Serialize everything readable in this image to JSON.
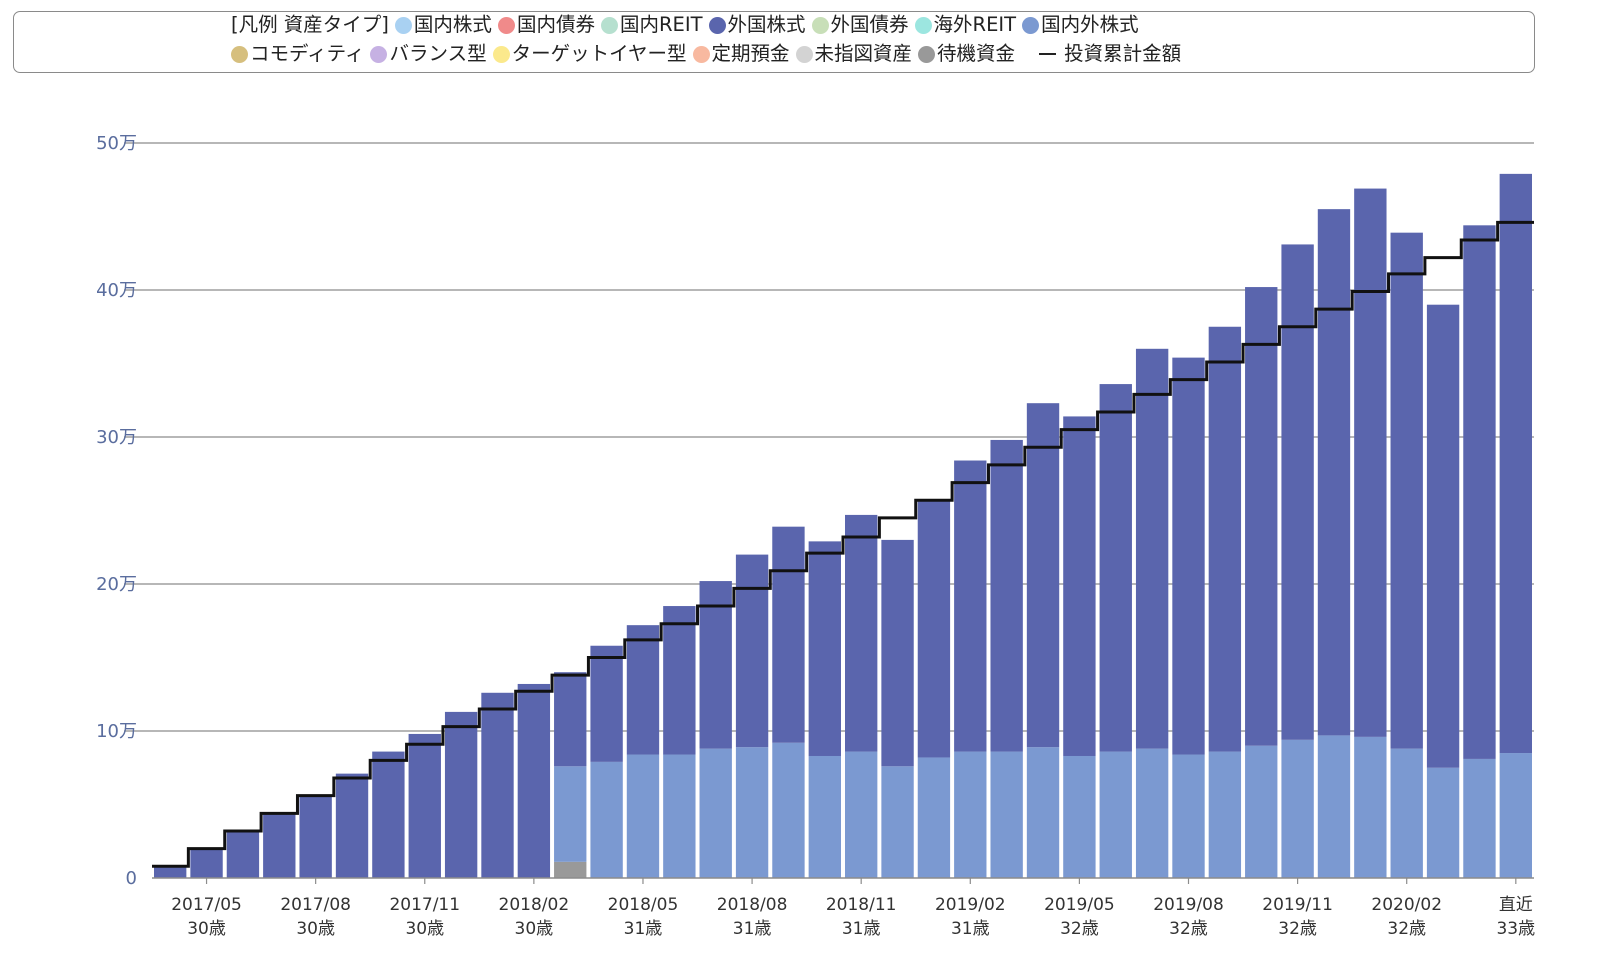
{
  "legend": {
    "title": "[凡例 資産タイプ]",
    "items": [
      {
        "label": "国内株式",
        "color": "#a9d1f2"
      },
      {
        "label": "国内債券",
        "color": "#f08a8a"
      },
      {
        "label": "国内REIT",
        "color": "#b6e0cf"
      },
      {
        "label": "外国株式",
        "color": "#5a65ad"
      },
      {
        "label": "外国債券",
        "color": "#c8dfb8"
      },
      {
        "label": "海外REIT",
        "color": "#9ce6e0"
      },
      {
        "label": "国内外株式",
        "color": "#7b99d1"
      },
      {
        "label": "コモディティ",
        "color": "#d6bf7e"
      },
      {
        "label": "バランス型",
        "color": "#c6b1e3"
      },
      {
        "label": "ターゲットイヤー型",
        "color": "#fbe98c"
      },
      {
        "label": "定期預金",
        "color": "#f8b9a0"
      },
      {
        "label": "未指図資産",
        "color": "#d3d3d3"
      },
      {
        "label": "待機資金",
        "color": "#999999"
      }
    ],
    "line_label": "投資累計金額"
  },
  "chart_data": {
    "type": "bar",
    "stacked": true,
    "ylim": [
      0,
      500000
    ],
    "yticks": [
      {
        "value": 0,
        "label": "0"
      },
      {
        "value": 100000,
        "label": "10万"
      },
      {
        "value": 200000,
        "label": "20万"
      },
      {
        "value": 300000,
        "label": "30万"
      },
      {
        "value": 400000,
        "label": "40万"
      },
      {
        "value": 500000,
        "label": "50万"
      }
    ],
    "x_tick_labels": [
      {
        "index": 1,
        "date": "2017/05",
        "age": "30歳"
      },
      {
        "index": 4,
        "date": "2017/08",
        "age": "30歳"
      },
      {
        "index": 7,
        "date": "2017/11",
        "age": "30歳"
      },
      {
        "index": 10,
        "date": "2018/02",
        "age": "30歳"
      },
      {
        "index": 13,
        "date": "2018/05",
        "age": "31歳"
      },
      {
        "index": 16,
        "date": "2018/08",
        "age": "31歳"
      },
      {
        "index": 19,
        "date": "2018/11",
        "age": "31歳"
      },
      {
        "index": 22,
        "date": "2019/02",
        "age": "31歳"
      },
      {
        "index": 25,
        "date": "2019/05",
        "age": "32歳"
      },
      {
        "index": 28,
        "date": "2019/08",
        "age": "32歳"
      },
      {
        "index": 31,
        "date": "2019/11",
        "age": "32歳"
      },
      {
        "index": 34,
        "date": "2020/02",
        "age": "32歳"
      },
      {
        "index": 37,
        "date": "直近",
        "age": "33歳"
      }
    ],
    "series": [
      {
        "name": "待機資金",
        "color": "#999999",
        "values": [
          0,
          0,
          0,
          0,
          0,
          0,
          0,
          0,
          0,
          0,
          0,
          11000,
          0,
          0,
          0,
          0,
          0,
          0,
          0,
          0,
          0,
          0,
          0,
          0,
          0,
          0,
          0,
          0,
          0,
          0,
          0,
          0,
          0,
          0,
          0,
          0,
          0,
          0
        ]
      },
      {
        "name": "国内外株式",
        "color": "#7b99d1",
        "values": [
          0,
          0,
          0,
          0,
          0,
          0,
          0,
          0,
          0,
          0,
          0,
          65000,
          79000,
          84000,
          84000,
          88000,
          89000,
          92000,
          83000,
          86000,
          76000,
          82000,
          86000,
          86000,
          89000,
          83000,
          86000,
          88000,
          84000,
          86000,
          90000,
          94000,
          97000,
          96000,
          88000,
          75000,
          81000,
          85000
        ]
      },
      {
        "name": "外国株式",
        "color": "#5a65ad",
        "values": [
          8000,
          20000,
          32000,
          44000,
          56000,
          71000,
          86000,
          98000,
          113000,
          126000,
          132000,
          64000,
          79000,
          88000,
          101000,
          114000,
          131000,
          147000,
          146000,
          161000,
          154000,
          175000,
          198000,
          212000,
          234000,
          231000,
          250000,
          272000,
          270000,
          289000,
          312000,
          337000,
          358000,
          373000,
          351000,
          315000,
          363000,
          394000
        ]
      }
    ],
    "invested_cumulative": [
      8000,
      20000,
      32000,
      44000,
      56000,
      68000,
      80000,
      91000,
      103000,
      115000,
      127000,
      138000,
      150000,
      162000,
      173000,
      185000,
      197000,
      209000,
      221000,
      232000,
      245000,
      257000,
      269000,
      281000,
      293000,
      305000,
      317000,
      329000,
      339000,
      351000,
      363000,
      375000,
      387000,
      399000,
      411000,
      422000,
      434000,
      446000
    ]
  }
}
